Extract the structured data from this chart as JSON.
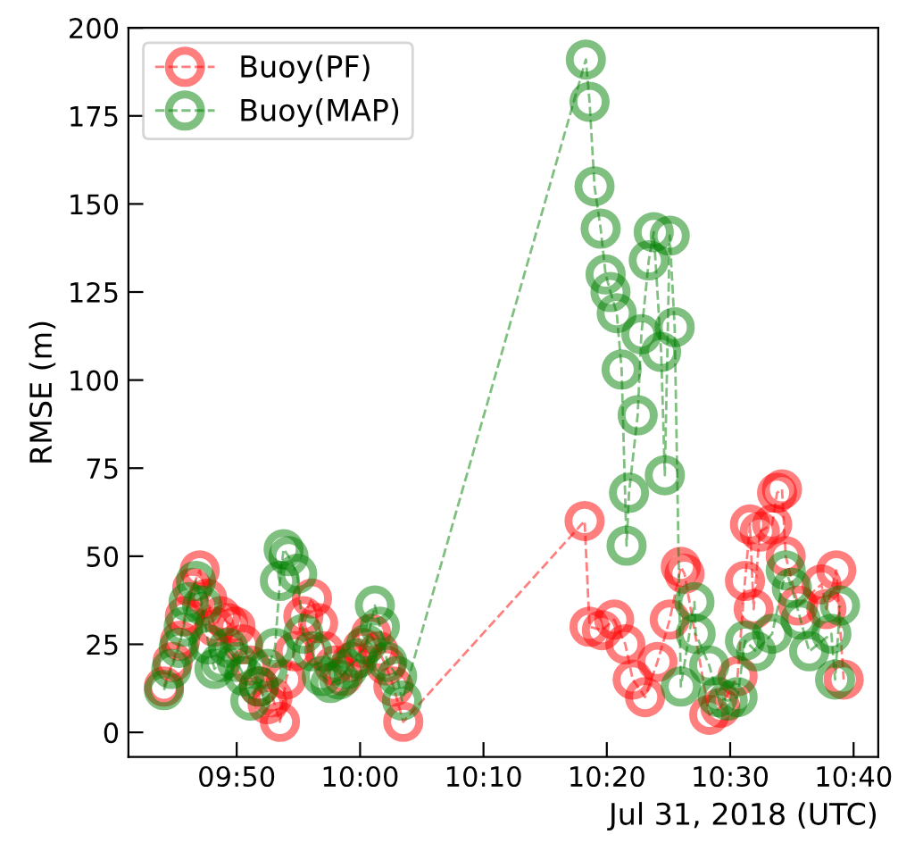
{
  "chart_data": {
    "type": "line",
    "xlabel": "Jul 31, 2018 (UTC)",
    "ylabel": "RMSE (m)",
    "xlim": [
      9.687,
      10.7
    ],
    "xticks": [
      {
        "value": 9.8333,
        "label": "09:50"
      },
      {
        "value": 10.0,
        "label": "10:00"
      },
      {
        "value": 10.1667,
        "label": "10:10"
      },
      {
        "value": 10.3333,
        "label": "10:20"
      },
      {
        "value": 10.5,
        "label": "10:30"
      },
      {
        "value": 10.6667,
        "label": "10:40"
      }
    ],
    "ylim": [
      -7,
      200
    ],
    "yticks": [
      0,
      25,
      50,
      75,
      100,
      125,
      150,
      175,
      200
    ],
    "grid": false,
    "legend": "top left",
    "marker": "circle",
    "line_style": "dashed",
    "series": [
      {
        "name": "Buoy(PF)",
        "color": "#ff0000",
        "x": [
          9.735,
          9.7467,
          9.7567,
          9.7633,
          9.7733,
          9.7833,
          9.7933,
          9.8033,
          9.8117,
          9.8217,
          9.8317,
          9.8417,
          9.8517,
          9.8633,
          9.875,
          9.8817,
          9.8917,
          9.9,
          9.9117,
          9.9233,
          9.935,
          9.9433,
          9.9517,
          9.965,
          9.9767,
          9.9883,
          10.0033,
          10.015,
          10.025,
          10.035,
          10.045,
          10.0583,
          10.3033,
          10.31,
          10.3267,
          10.3433,
          10.3583,
          10.3683,
          10.385,
          10.4017,
          10.4183,
          10.4333,
          10.4383,
          10.4717,
          10.4867,
          10.51,
          10.52,
          10.5267,
          10.5317,
          10.54,
          10.5567,
          10.5633,
          10.57,
          10.575,
          10.5917,
          10.6233,
          10.63,
          10.6433,
          10.6533
        ],
        "values": [
          13,
          20,
          26,
          33,
          41,
          46,
          38,
          30,
          33,
          31,
          30,
          25,
          19,
          13,
          8,
          10,
          3,
          15,
          23,
          33,
          38,
          31,
          23,
          19,
          16,
          20,
          24,
          28,
          23,
          19,
          13,
          3,
          60,
          30,
          29,
          32,
          25,
          15,
          10,
          20,
          32,
          47,
          45,
          5,
          7,
          16,
          43,
          59,
          35,
          57,
          59,
          68,
          69,
          50,
          36,
          42,
          35,
          46,
          15
        ]
      },
      {
        "name": "Buoy(MAP)",
        "color": "#008000",
        "x": [
          9.735,
          9.745,
          9.755,
          9.7617,
          9.7683,
          9.7783,
          9.7867,
          9.795,
          9.8033,
          9.8117,
          9.8217,
          9.8333,
          9.8433,
          9.8517,
          9.8633,
          9.875,
          9.885,
          9.8917,
          9.8967,
          9.9033,
          9.915,
          9.9233,
          9.935,
          9.9483,
          9.96,
          9.9717,
          9.9833,
          9.9967,
          10.0083,
          10.02,
          10.0267,
          10.0367,
          10.05,
          10.0567,
          10.305,
          10.31,
          10.3167,
          10.325,
          10.3317,
          10.3383,
          10.3467,
          10.3533,
          10.36,
          10.3633,
          10.375,
          10.38,
          10.39,
          10.3967,
          10.4067,
          10.4117,
          10.4183,
          10.425,
          10.4333,
          10.4517,
          10.4533,
          10.4717,
          10.4833,
          10.4967,
          10.51,
          10.52,
          10.535,
          10.5567,
          10.575,
          10.5833,
          10.595,
          10.6067,
          10.6367,
          10.6417,
          10.6483
        ],
        "values": [
          12,
          18,
          24,
          30,
          37,
          43,
          36,
          25,
          18,
          20,
          24,
          20,
          16,
          9,
          13,
          18,
          24,
          43,
          52,
          50,
          45,
          28,
          23,
          16,
          14,
          15,
          18,
          21,
          25,
          36,
          30,
          20,
          16,
          9,
          191,
          179,
          155,
          143,
          130,
          125,
          119,
          103,
          53,
          68,
          90,
          113,
          134,
          142,
          108,
          73,
          141,
          115,
          13,
          37,
          28,
          19,
          10,
          9,
          10,
          26,
          23,
          28,
          46,
          41,
          32,
          23,
          28,
          15,
          36
        ]
      }
    ]
  }
}
